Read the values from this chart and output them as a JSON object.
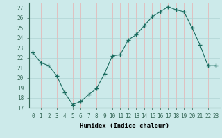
{
  "x": [
    0,
    1,
    2,
    3,
    4,
    5,
    6,
    7,
    8,
    9,
    10,
    11,
    12,
    13,
    14,
    15,
    16,
    17,
    18,
    19,
    20,
    21,
    22,
    23
  ],
  "y": [
    22.5,
    21.5,
    21.2,
    20.2,
    18.5,
    17.3,
    17.6,
    18.3,
    18.9,
    20.4,
    22.2,
    22.3,
    23.8,
    24.3,
    25.2,
    26.1,
    26.6,
    27.1,
    26.8,
    26.6,
    25.0,
    23.3,
    21.2,
    21.2
  ],
  "xlabel": "Humidex (Indice chaleur)",
  "xlim": [
    -0.5,
    23.5
  ],
  "ylim": [
    17,
    27.5
  ],
  "yticks": [
    17,
    18,
    19,
    20,
    21,
    22,
    23,
    24,
    25,
    26,
    27
  ],
  "xticks": [
    0,
    1,
    2,
    3,
    4,
    5,
    6,
    7,
    8,
    9,
    10,
    11,
    12,
    13,
    14,
    15,
    16,
    17,
    18,
    19,
    20,
    21,
    22,
    23
  ],
  "line_color": "#1a6b5e",
  "marker": "+",
  "marker_size": 4,
  "bg_color": "#cceaea",
  "grid_color": "#b0d4d4",
  "grid_color_red": "#e8b0b0",
  "label_fontsize": 6.5,
  "tick_fontsize": 5.5
}
